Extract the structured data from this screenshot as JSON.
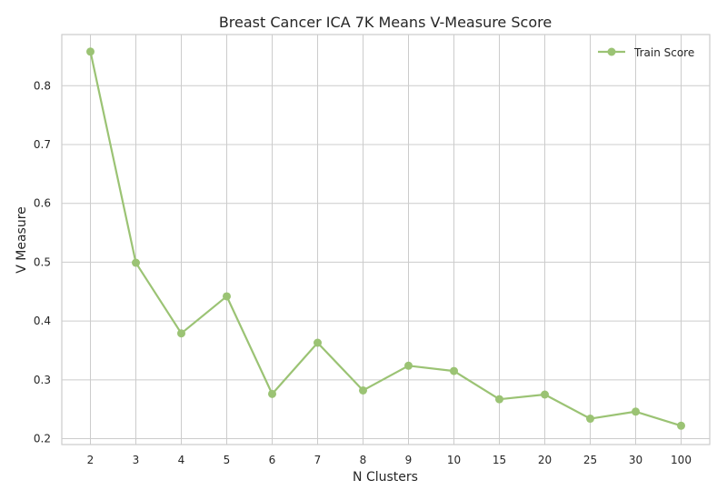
{
  "chart_data": {
    "type": "line",
    "title": "Breast Cancer ICA 7K Means V-Measure Score",
    "xlabel": "N Clusters",
    "ylabel": "V Measure",
    "categories": [
      "2",
      "3",
      "4",
      "5",
      "6",
      "7",
      "8",
      "9",
      "10",
      "15",
      "20",
      "25",
      "30",
      "100"
    ],
    "series": [
      {
        "name": "Train Score",
        "color": "#9bc374",
        "marker": "circle",
        "values": [
          0.858,
          0.499,
          0.379,
          0.442,
          0.276,
          0.363,
          0.282,
          0.324,
          0.315,
          0.267,
          0.275,
          0.234,
          0.246,
          0.222
        ]
      }
    ],
    "yticks": [
      "0.2",
      "0.3",
      "0.4",
      "0.5",
      "0.6",
      "0.7",
      "0.8"
    ],
    "ylim": [
      0.19,
      0.887
    ],
    "grid": true,
    "legend_position": "top-right"
  }
}
